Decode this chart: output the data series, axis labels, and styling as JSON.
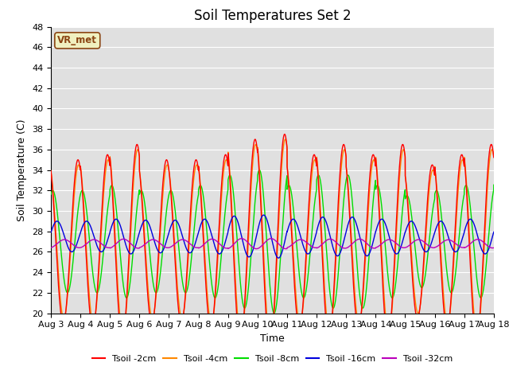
{
  "title": "Soil Temperatures Set 2",
  "xlabel": "Time",
  "ylabel": "Soil Temperature (C)",
  "ylim": [
    20,
    48
  ],
  "yticks": [
    20,
    22,
    24,
    26,
    28,
    30,
    32,
    34,
    36,
    38,
    40,
    42,
    44,
    46,
    48
  ],
  "x_tick_labels": [
    "Aug 3",
    "Aug 4",
    "Aug 5",
    "Aug 6",
    "Aug 7",
    "Aug 8",
    "Aug 9",
    "Aug 10",
    "Aug 11",
    "Aug 12",
    "Aug 13",
    "Aug 14",
    "Aug 15",
    "Aug 16",
    "Aug 17",
    "Aug 18"
  ],
  "series": {
    "Tsoil -2cm": {
      "color": "#ff0000",
      "lw": 1.0
    },
    "Tsoil -4cm": {
      "color": "#ff8800",
      "lw": 1.0
    },
    "Tsoil -8cm": {
      "color": "#00dd00",
      "lw": 1.0
    },
    "Tsoil -16cm": {
      "color": "#0000dd",
      "lw": 1.0
    },
    "Tsoil -32cm": {
      "color": "#bb00bb",
      "lw": 1.0
    }
  },
  "legend_label": "VR_met",
  "legend_label_color": "#8B4513",
  "legend_label_bg": "#f0f0c0",
  "background_color": "#e0e0e0",
  "grid_color": "#ffffff",
  "title_fontsize": 12,
  "axis_label_fontsize": 9,
  "tick_fontsize": 8,
  "days": 15,
  "pts_per_day": 288,
  "base_temp": 27.0,
  "peak_hour": 14.0,
  "day_amps_2cm": [
    8.0,
    8.5,
    9.5,
    8.0,
    8.0,
    8.5,
    10.0,
    10.5,
    8.5,
    9.5,
    8.5,
    9.5,
    7.5,
    8.5,
    9.5,
    9.5
  ],
  "day_amps_4cm": [
    7.5,
    8.0,
    9.0,
    7.5,
    7.5,
    8.0,
    9.5,
    10.0,
    8.0,
    9.0,
    8.0,
    9.0,
    7.0,
    8.0,
    9.0,
    9.0
  ],
  "day_amps_8cm": [
    5.0,
    5.0,
    5.5,
    5.0,
    5.0,
    5.5,
    6.5,
    7.0,
    5.5,
    6.5,
    6.5,
    5.5,
    4.5,
    5.0,
    5.5,
    6.0
  ],
  "day_amps_16cm": [
    1.5,
    1.5,
    1.7,
    1.6,
    1.6,
    1.7,
    2.0,
    2.1,
    1.7,
    1.9,
    1.9,
    1.7,
    1.5,
    1.5,
    1.7,
    1.7
  ],
  "day_amps_32cm": [
    0.4,
    0.4,
    0.45,
    0.4,
    0.4,
    0.45,
    0.5,
    0.5,
    0.4,
    0.45,
    0.45,
    0.4,
    0.4,
    0.38,
    0.42,
    0.42
  ],
  "phase_lag_hrs_2cm": 0.0,
  "phase_lag_hrs_4cm": 0.5,
  "phase_lag_hrs_8cm": 3.5,
  "phase_lag_hrs_16cm": 7.0,
  "phase_lag_hrs_32cm": 13.0,
  "base_2cm": 27.0,
  "base_4cm": 27.0,
  "base_8cm": 27.0,
  "base_16cm": 27.5,
  "base_32cm": 26.8
}
